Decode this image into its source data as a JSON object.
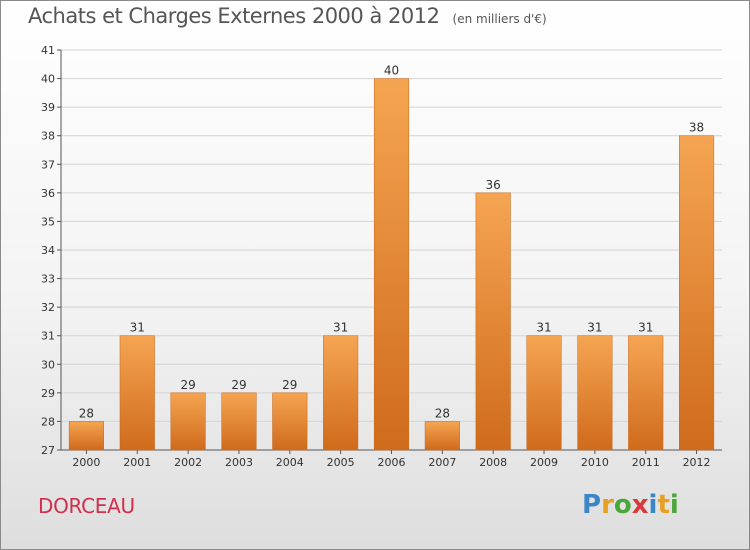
{
  "header": {
    "title": "Achats et Charges Externes 2000 à 2012",
    "unit": "(en milliers d'€)"
  },
  "footer": {
    "commune": "DORCEAU",
    "brand": {
      "chars": [
        "P",
        "r",
        "o",
        "x",
        "i",
        "t",
        "i"
      ],
      "colors": [
        "#3a86c8",
        "#e8a020",
        "#4aa83a",
        "#d83a3a",
        "#3a86c8",
        "#e8a020",
        "#4aa83a"
      ]
    }
  },
  "colors": {
    "bar_top": "#f5a552",
    "bar_bottom": "#cf6b1c",
    "commune": "#d0304c"
  },
  "chart_data": {
    "type": "bar",
    "categories": [
      "2000",
      "2001",
      "2002",
      "2003",
      "2004",
      "2005",
      "2006",
      "2007",
      "2008",
      "2009",
      "2010",
      "2011",
      "2012"
    ],
    "values": [
      28,
      31,
      29,
      29,
      29,
      31,
      40,
      28,
      36,
      31,
      31,
      31,
      38
    ],
    "ylim": [
      27,
      41
    ],
    "yticks": [
      27,
      28,
      29,
      30,
      31,
      32,
      33,
      34,
      35,
      36,
      37,
      38,
      39,
      40,
      41
    ],
    "grid": true
  }
}
